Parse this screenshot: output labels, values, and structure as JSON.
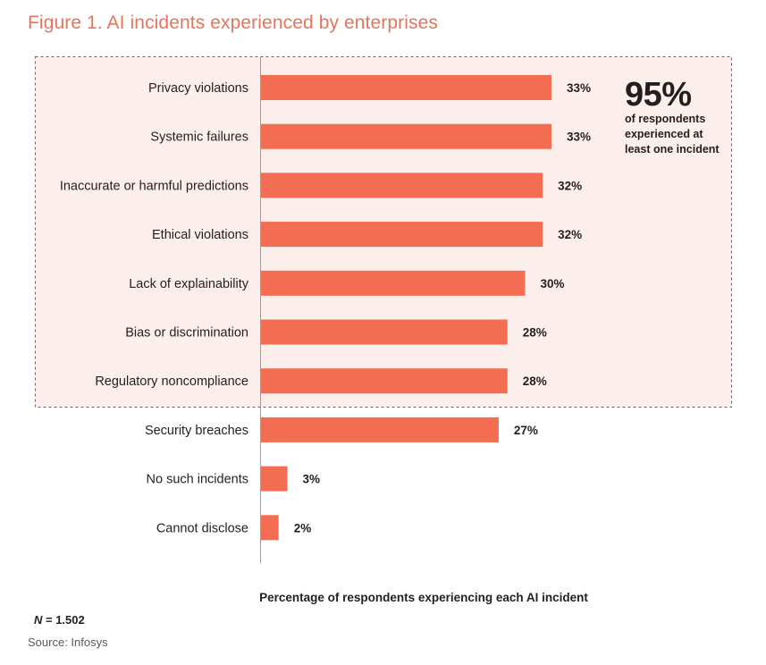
{
  "figure": {
    "title": "Figure 1. AI incidents experienced by enterprises"
  },
  "callout": {
    "value": "95%",
    "text_line1": "of respondents",
    "text_line2": "experienced at",
    "text_line3": "least one incident"
  },
  "footnote": {
    "n_label": "N",
    "n_value": " = 1.502",
    "source": "Source: Infosys"
  },
  "colors": {
    "bar": "#f26d52",
    "highlight_fill": "#fcefeb",
    "title": "#e8735d"
  },
  "chart_data": {
    "type": "bar",
    "orientation": "horizontal",
    "categories": [
      "Privacy violations",
      "Systemic failures",
      "Inaccurate or harmful predictions",
      "Ethical violations",
      "Lack of explainability",
      "Bias or discrimination",
      "Regulatory noncompliance",
      "Security breaches",
      "No such incidents",
      "Cannot disclose"
    ],
    "values": [
      33,
      33,
      32,
      32,
      30,
      28,
      28,
      27,
      3,
      2
    ],
    "value_labels": [
      "33%",
      "33%",
      "32%",
      "32%",
      "30%",
      "28%",
      "28%",
      "27%",
      "3%",
      "2%"
    ],
    "xlabel": "Percentage of respondents experiencing each AI incident",
    "ylabel": "",
    "xlim": [
      0,
      33
    ],
    "grid": false,
    "highlighted_categories": 7
  }
}
